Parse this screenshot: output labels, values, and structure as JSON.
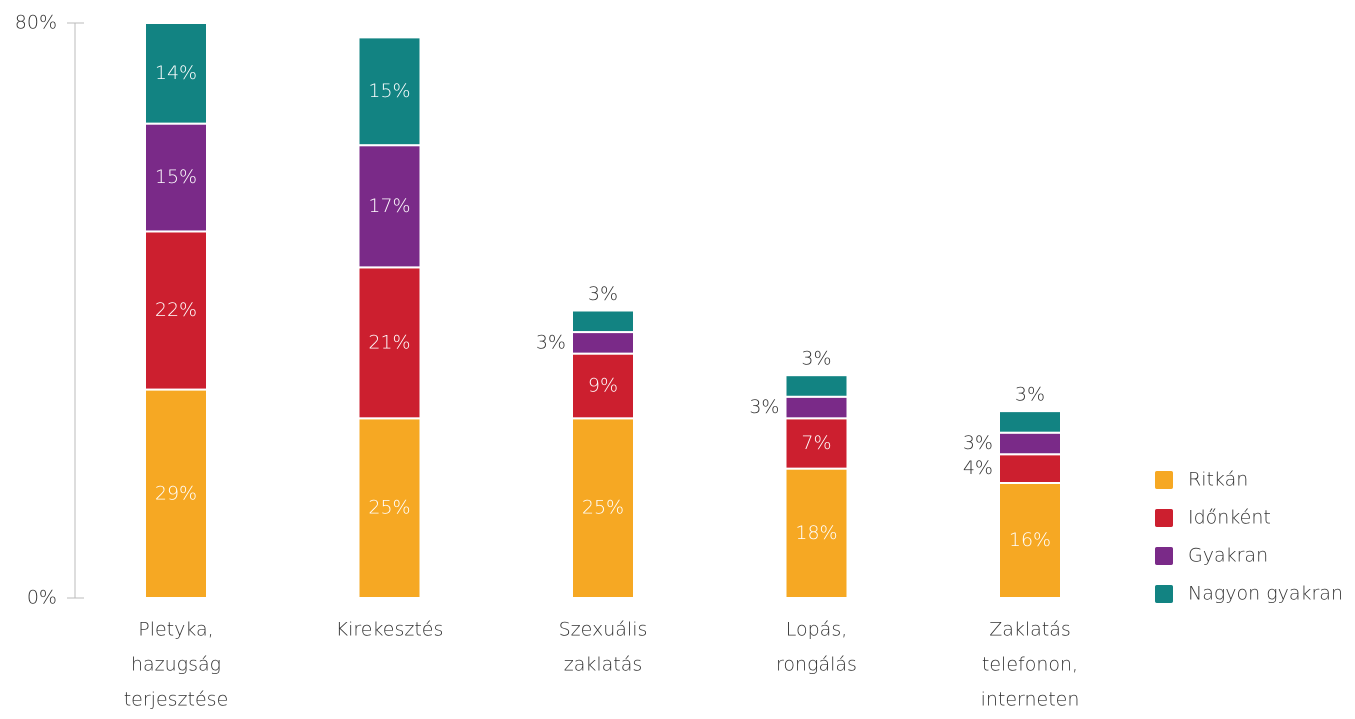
{
  "chart_data": {
    "type": "stacked_bar",
    "categories": [
      [
        "Pletyka,",
        "hazugság",
        "terjesztése"
      ],
      [
        "Kirekesztés"
      ],
      [
        "Szexuális",
        "zaklatás"
      ],
      [
        "Lopás,",
        "rongálás"
      ],
      [
        "Zaklatás",
        "telefonon,",
        "interneten"
      ]
    ],
    "series": [
      {
        "name": "Ritkán",
        "color": "#f6a823",
        "values": [
          29,
          25,
          25,
          18,
          16
        ],
        "value_labels": [
          "29%",
          "25%",
          "25%",
          "18%",
          "16%"
        ]
      },
      {
        "name": "Időnként",
        "color": "#cc1f2f",
        "values": [
          22,
          21,
          9,
          7,
          4
        ],
        "value_labels": [
          "22%",
          "21%",
          "9%",
          "7%",
          "4%"
        ]
      },
      {
        "name": "Gyakran",
        "color": "#7a2a88",
        "values": [
          15,
          17,
          3,
          3,
          3
        ],
        "value_labels": [
          "15%",
          "17%",
          "3%",
          "3%",
          "3%"
        ]
      },
      {
        "name": "Nagyon gyakran",
        "color": "#128382",
        "values": [
          14,
          15,
          3,
          3,
          3
        ],
        "value_labels": [
          "14%",
          "15%",
          "3%",
          "3%",
          "3%"
        ]
      }
    ],
    "ylim": [
      0,
      80
    ],
    "yticks": [
      {
        "value": 0,
        "label": "0%"
      },
      {
        "value": 80,
        "label": "80%"
      }
    ],
    "legend": "right"
  }
}
